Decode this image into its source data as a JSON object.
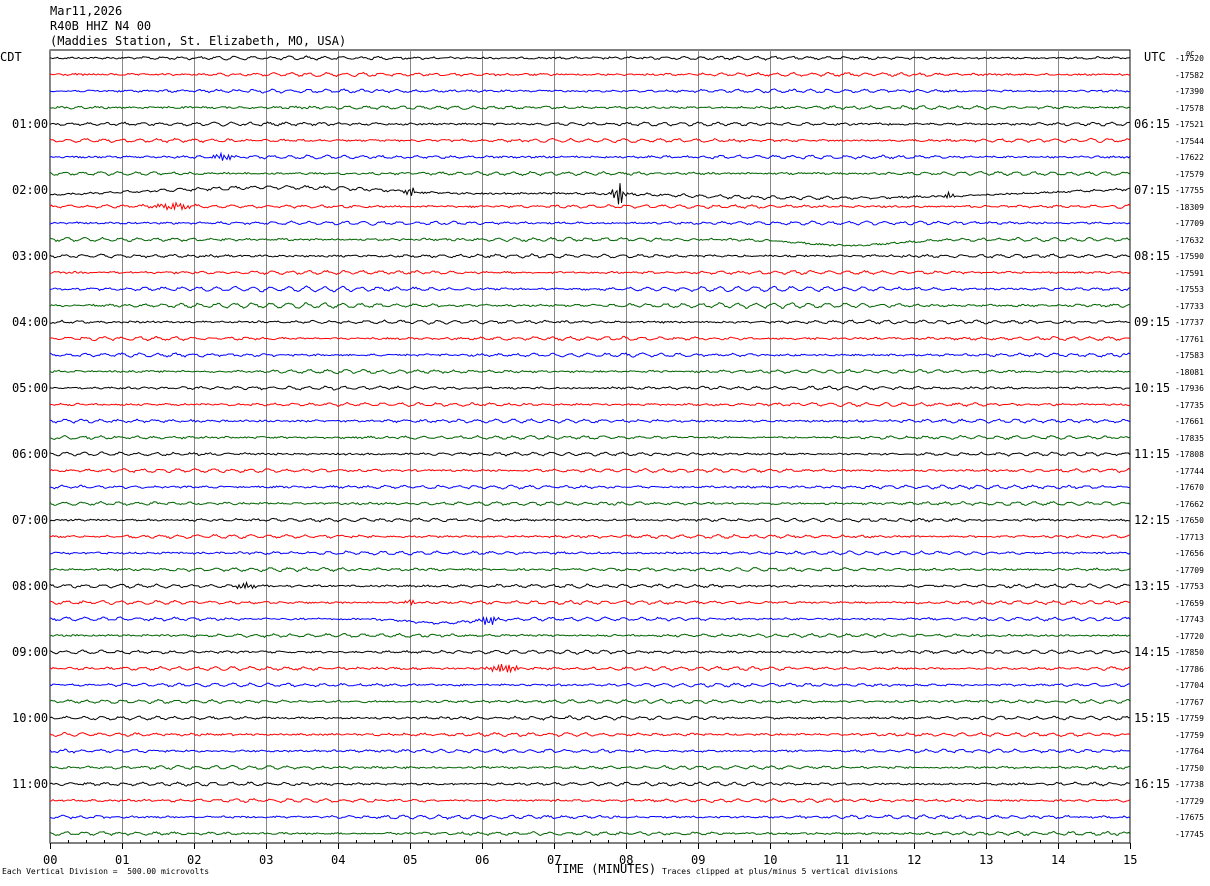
{
  "header": {
    "date": "Mar11,2026",
    "channel": "R40B HHZ N4 00",
    "station": "(Maddies Station, St. Elizabeth, MO, USA)"
  },
  "left_zone": "CDT",
  "right_zone": "UTC",
  "units_mark": "0C",
  "footer": {
    "scale": "Each Vertical Division =  500.00 microvolts",
    "clip": "Traces clipped at plus/minus 5 vertical divisions"
  },
  "chart_data": {
    "type": "line",
    "xlabel": "TIME (MINUTES)",
    "x_ticks": [
      "00",
      "01",
      "02",
      "03",
      "04",
      "05",
      "06",
      "07",
      "08",
      "09",
      "10",
      "11",
      "12",
      "13",
      "14",
      "15"
    ],
    "xlim": [
      0,
      15
    ],
    "grid": true,
    "trace_colors": [
      "#000000",
      "#ff0000",
      "#0000ff",
      "#006400"
    ],
    "left_hour_labels": [
      "01:00",
      "02:00",
      "03:00",
      "04:00",
      "05:00",
      "06:00",
      "07:00",
      "08:00",
      "09:00",
      "10:00",
      "11:00"
    ],
    "right_hour_labels": [
      "06:15",
      "07:15",
      "08:15",
      "09:15",
      "10:15",
      "11:15",
      "12:15",
      "13:15",
      "14:15",
      "15:15",
      "16:15"
    ],
    "trace_offsets": [
      "-17520",
      "-17582",
      "-17390",
      "-17578",
      "-17521",
      "-17544",
      "-17622",
      "-17579",
      "-17755",
      "-18309",
      "-17709",
      "-17632",
      "-17590",
      "-17591",
      "-17553",
      "-17733",
      "-17737",
      "-17761",
      "-17583",
      "-18081",
      "-17936",
      "-17735",
      "-17661",
      "-17835",
      "-17808",
      "-17744",
      "-17670",
      "-17662",
      "-17650",
      "-17713",
      "-17656",
      "-17709",
      "-17753",
      "-17659",
      "-17743",
      "-17720",
      "-17850",
      "-17786",
      "-17704",
      "-17767",
      "-17759",
      "-17759",
      "-17764",
      "-17750",
      "-17738",
      "-17729",
      "-17675",
      "-17745"
    ]
  }
}
